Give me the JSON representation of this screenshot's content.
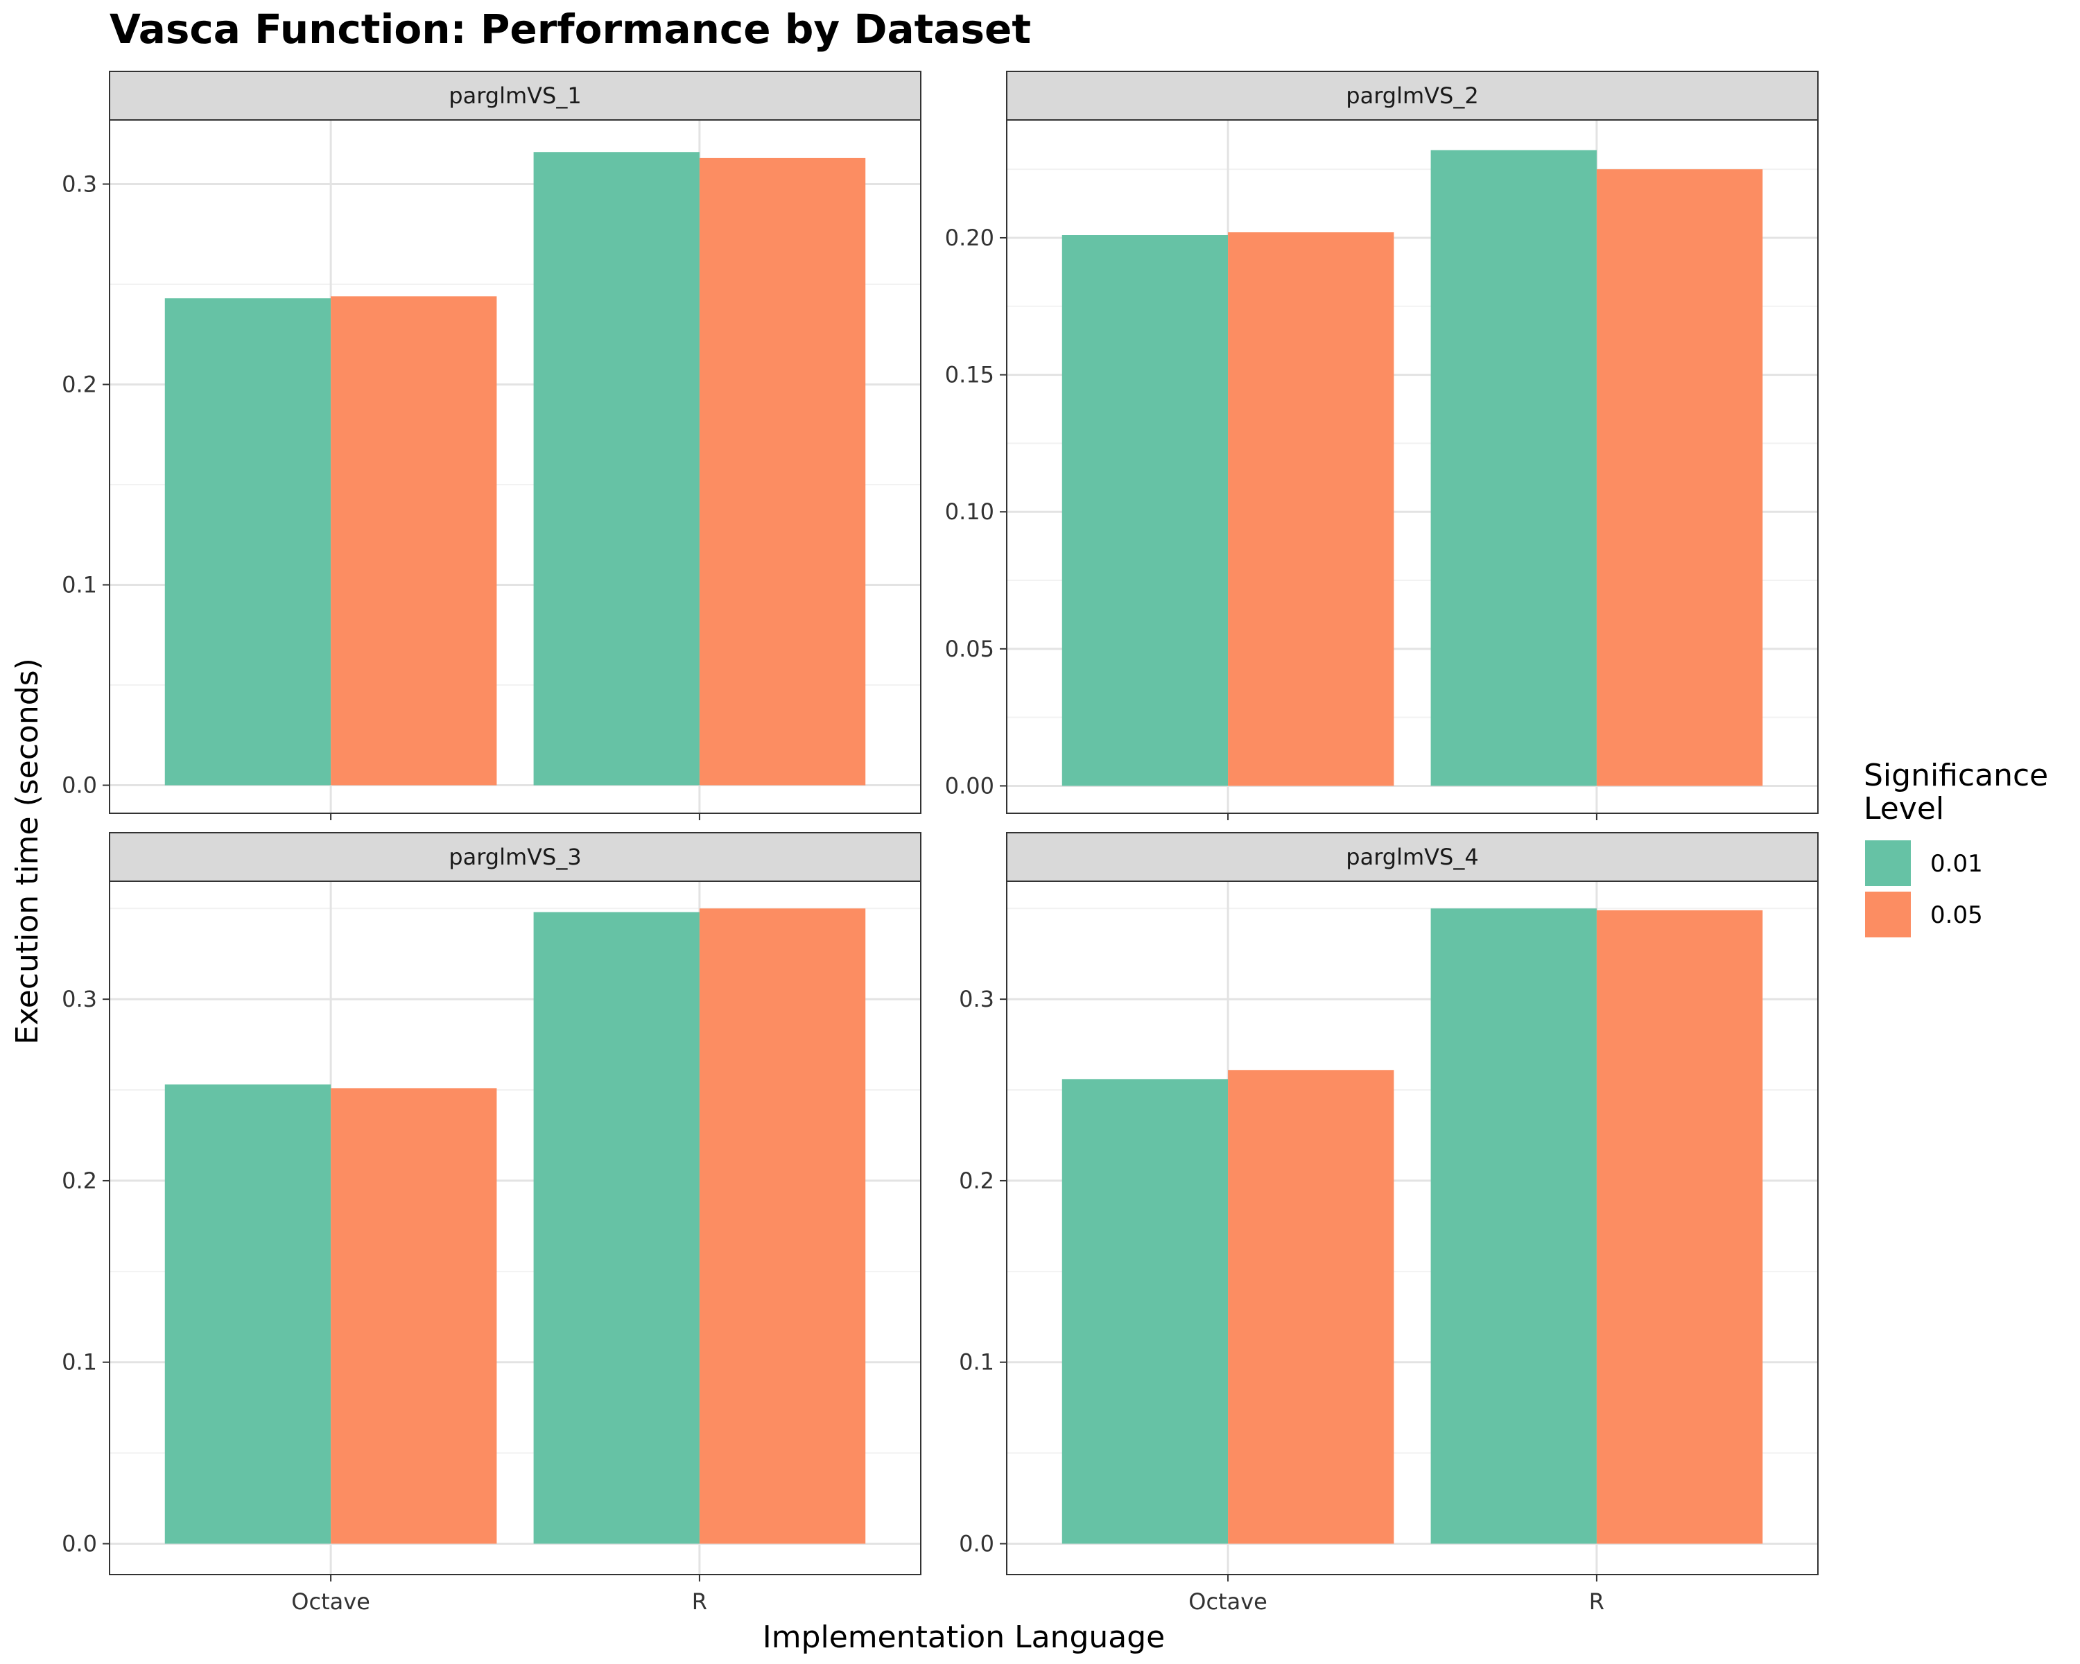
{
  "chart_data": {
    "type": "bar",
    "title": "Vasca Function: Performance by Dataset",
    "xlabel": "Implementation Language",
    "ylabel": "Execution time (seconds)",
    "categories": [
      "Octave",
      "R"
    ],
    "legend": {
      "title_lines": [
        "Significance",
        "Level"
      ],
      "position": "right"
    },
    "series_names": [
      "0.01",
      "0.05"
    ],
    "colors": [
      "#66c2a5",
      "#fc8d62"
    ],
    "grid": true,
    "panels": [
      {
        "name": "parglmVS_1",
        "ylim": [
          -0.014,
          0.332
        ],
        "yticks": [
          "0.0",
          "0.1",
          "0.2",
          "0.3"
        ],
        "yticks_values": [
          0.0,
          0.1,
          0.2,
          0.3
        ],
        "series": [
          {
            "name": "0.01",
            "values": [
              0.243,
              0.316
            ]
          },
          {
            "name": "0.05",
            "values": [
              0.244,
              0.313
            ]
          }
        ]
      },
      {
        "name": "parglmVS_2",
        "ylim": [
          -0.01,
          0.243
        ],
        "yticks": [
          "0.00",
          "0.05",
          "0.10",
          "0.15",
          "0.20"
        ],
        "yticks_values": [
          0.0,
          0.05,
          0.1,
          0.15,
          0.2
        ],
        "series": [
          {
            "name": "0.01",
            "values": [
              0.201,
              0.232
            ]
          },
          {
            "name": "0.05",
            "values": [
              0.202,
              0.225
            ]
          }
        ]
      },
      {
        "name": "parglmVS_3",
        "ylim": [
          -0.017,
          0.365
        ],
        "yticks": [
          "0.0",
          "0.1",
          "0.2",
          "0.3"
        ],
        "yticks_values": [
          0.0,
          0.1,
          0.2,
          0.3
        ],
        "series": [
          {
            "name": "0.01",
            "values": [
              0.253,
              0.348
            ]
          },
          {
            "name": "0.05",
            "values": [
              0.251,
              0.35
            ]
          }
        ]
      },
      {
        "name": "parglmVS_4",
        "ylim": [
          -0.017,
          0.365
        ],
        "yticks": [
          "0.0",
          "0.1",
          "0.2",
          "0.3"
        ],
        "yticks_values": [
          0.0,
          0.1,
          0.2,
          0.3
        ],
        "series": [
          {
            "name": "0.01",
            "values": [
              0.256,
              0.35
            ]
          },
          {
            "name": "0.05",
            "values": [
              0.261,
              0.349
            ]
          }
        ]
      }
    ]
  }
}
